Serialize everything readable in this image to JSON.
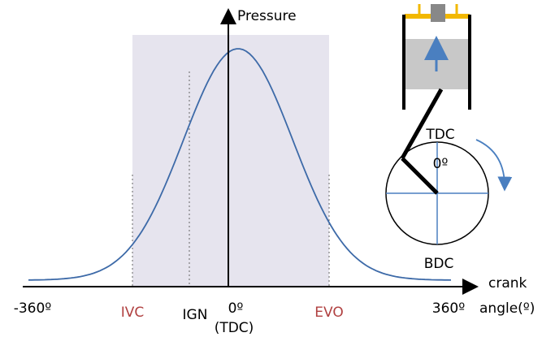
{
  "axis": {
    "y_label": "Pressure",
    "x_label": [
      "crank",
      "angle(º)"
    ]
  },
  "ticks": {
    "left": "-360º",
    "ivc": "IVC",
    "ign": "IGN",
    "zero": "0º",
    "zero_note": "(TDC)",
    "evo": "EVO",
    "right": "360º"
  },
  "engine": {
    "top": "TDC",
    "angle": "0º",
    "bottom": "BDC"
  }
}
